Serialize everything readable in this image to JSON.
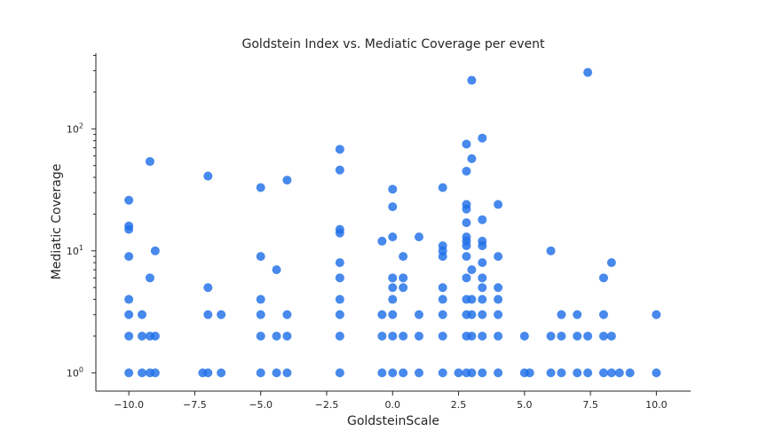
{
  "chart_data": {
    "type": "scatter",
    "title": "Goldstein Index vs. Mediatic Coverage per event",
    "xlabel": "GoldsteinScale",
    "ylabel": "Mediatic Coverage",
    "xlim": [
      -11.25,
      11.3
    ],
    "ylim_log10": [
      -0.15,
      2.62
    ],
    "yscale": "log",
    "x_ticks": [
      {
        "value": -10,
        "label": "−10.0"
      },
      {
        "value": -7.5,
        "label": "−7.5"
      },
      {
        "value": -5,
        "label": "−5.0"
      },
      {
        "value": -2.5,
        "label": "−2.5"
      },
      {
        "value": 0,
        "label": "0.0"
      },
      {
        "value": 2.5,
        "label": "2.5"
      },
      {
        "value": 5,
        "label": "5.0"
      },
      {
        "value": 7.5,
        "label": "7.5"
      },
      {
        "value": 10,
        "label": "10.0"
      }
    ],
    "y_ticks": [
      {
        "value": 1,
        "base": "10",
        "exp": "0"
      },
      {
        "value": 10,
        "base": "10",
        "exp": "1"
      },
      {
        "value": 100,
        "base": "10",
        "exp": "2"
      }
    ],
    "grid": false,
    "marker_color": "#1f6fe8",
    "points": [
      [
        -10,
        26
      ],
      [
        -10,
        16
      ],
      [
        -10,
        15
      ],
      [
        -10,
        9
      ],
      [
        -10,
        4
      ],
      [
        -10,
        3
      ],
      [
        -10,
        2
      ],
      [
        -10,
        1
      ],
      [
        -9.5,
        3
      ],
      [
        -9.5,
        2
      ],
      [
        -9.5,
        1
      ],
      [
        -9.2,
        54
      ],
      [
        -9.2,
        6
      ],
      [
        -9.2,
        2
      ],
      [
        -9.2,
        1
      ],
      [
        -9,
        10
      ],
      [
        -9,
        2
      ],
      [
        -9,
        1
      ],
      [
        -7.2,
        1
      ],
      [
        -7,
        41
      ],
      [
        -7,
        5
      ],
      [
        -7,
        3
      ],
      [
        -7,
        1
      ],
      [
        -6.5,
        3
      ],
      [
        -6.5,
        1
      ],
      [
        -5,
        33
      ],
      [
        -5,
        9
      ],
      [
        -5,
        4
      ],
      [
        -5,
        3
      ],
      [
        -5,
        2
      ],
      [
        -5,
        1
      ],
      [
        -4.4,
        7
      ],
      [
        -4.4,
        2
      ],
      [
        -4.4,
        1
      ],
      [
        -4,
        38
      ],
      [
        -4,
        3
      ],
      [
        -4,
        2
      ],
      [
        -4,
        1
      ],
      [
        -2,
        68
      ],
      [
        -2,
        46
      ],
      [
        -2,
        15
      ],
      [
        -2,
        14
      ],
      [
        -2,
        8
      ],
      [
        -2,
        6
      ],
      [
        -2,
        4
      ],
      [
        -2,
        3
      ],
      [
        -2,
        2
      ],
      [
        -2,
        1
      ],
      [
        -0.4,
        12
      ],
      [
        -0.4,
        3
      ],
      [
        -0.4,
        2
      ],
      [
        -0.4,
        1
      ],
      [
        0,
        32
      ],
      [
        0,
        23
      ],
      [
        0,
        13
      ],
      [
        0,
        6
      ],
      [
        0,
        5
      ],
      [
        0,
        4
      ],
      [
        0,
        3
      ],
      [
        0,
        2
      ],
      [
        0,
        1
      ],
      [
        0.4,
        9
      ],
      [
        0.4,
        6
      ],
      [
        0.4,
        5
      ],
      [
        0.4,
        2
      ],
      [
        0.4,
        1
      ],
      [
        1,
        13
      ],
      [
        1,
        3
      ],
      [
        1,
        2
      ],
      [
        1,
        1
      ],
      [
        1.9,
        33
      ],
      [
        1.9,
        11
      ],
      [
        1.9,
        10
      ],
      [
        1.9,
        9
      ],
      [
        1.9,
        5
      ],
      [
        1.9,
        4
      ],
      [
        1.9,
        3
      ],
      [
        1.9,
        2
      ],
      [
        1.9,
        1
      ],
      [
        2.5,
        1
      ],
      [
        2.8,
        75
      ],
      [
        2.8,
        45
      ],
      [
        2.8,
        24
      ],
      [
        2.8,
        22
      ],
      [
        2.8,
        17
      ],
      [
        2.8,
        13
      ],
      [
        2.8,
        12
      ],
      [
        2.8,
        11
      ],
      [
        2.8,
        9
      ],
      [
        2.8,
        6
      ],
      [
        2.8,
        4
      ],
      [
        2.8,
        3
      ],
      [
        2.8,
        2
      ],
      [
        2.8,
        1
      ],
      [
        3,
        250
      ],
      [
        3,
        57
      ],
      [
        3,
        7
      ],
      [
        3,
        4
      ],
      [
        3,
        3
      ],
      [
        3,
        2
      ],
      [
        3,
        1
      ],
      [
        3.4,
        84
      ],
      [
        3.4,
        18
      ],
      [
        3.4,
        12
      ],
      [
        3.4,
        11
      ],
      [
        3.4,
        8
      ],
      [
        3.4,
        6
      ],
      [
        3.4,
        5
      ],
      [
        3.4,
        4
      ],
      [
        3.4,
        3
      ],
      [
        3.4,
        2
      ],
      [
        3.4,
        1
      ],
      [
        4,
        24
      ],
      [
        4,
        9
      ],
      [
        4,
        5
      ],
      [
        4,
        4
      ],
      [
        4,
        3
      ],
      [
        4,
        2
      ],
      [
        4,
        1
      ],
      [
        5,
        2
      ],
      [
        5,
        1
      ],
      [
        5.2,
        1
      ],
      [
        6,
        10
      ],
      [
        6,
        2
      ],
      [
        6,
        1
      ],
      [
        6.4,
        3
      ],
      [
        6.4,
        2
      ],
      [
        6.4,
        1
      ],
      [
        7,
        3
      ],
      [
        7,
        2
      ],
      [
        7,
        1
      ],
      [
        7.4,
        290
      ],
      [
        7.4,
        2
      ],
      [
        7.4,
        1
      ],
      [
        8,
        6
      ],
      [
        8,
        3
      ],
      [
        8,
        2
      ],
      [
        8,
        1
      ],
      [
        8.3,
        8
      ],
      [
        8.3,
        2
      ],
      [
        8.3,
        1
      ],
      [
        8.6,
        1
      ],
      [
        9,
        1
      ],
      [
        10,
        3
      ],
      [
        10,
        1
      ]
    ]
  }
}
